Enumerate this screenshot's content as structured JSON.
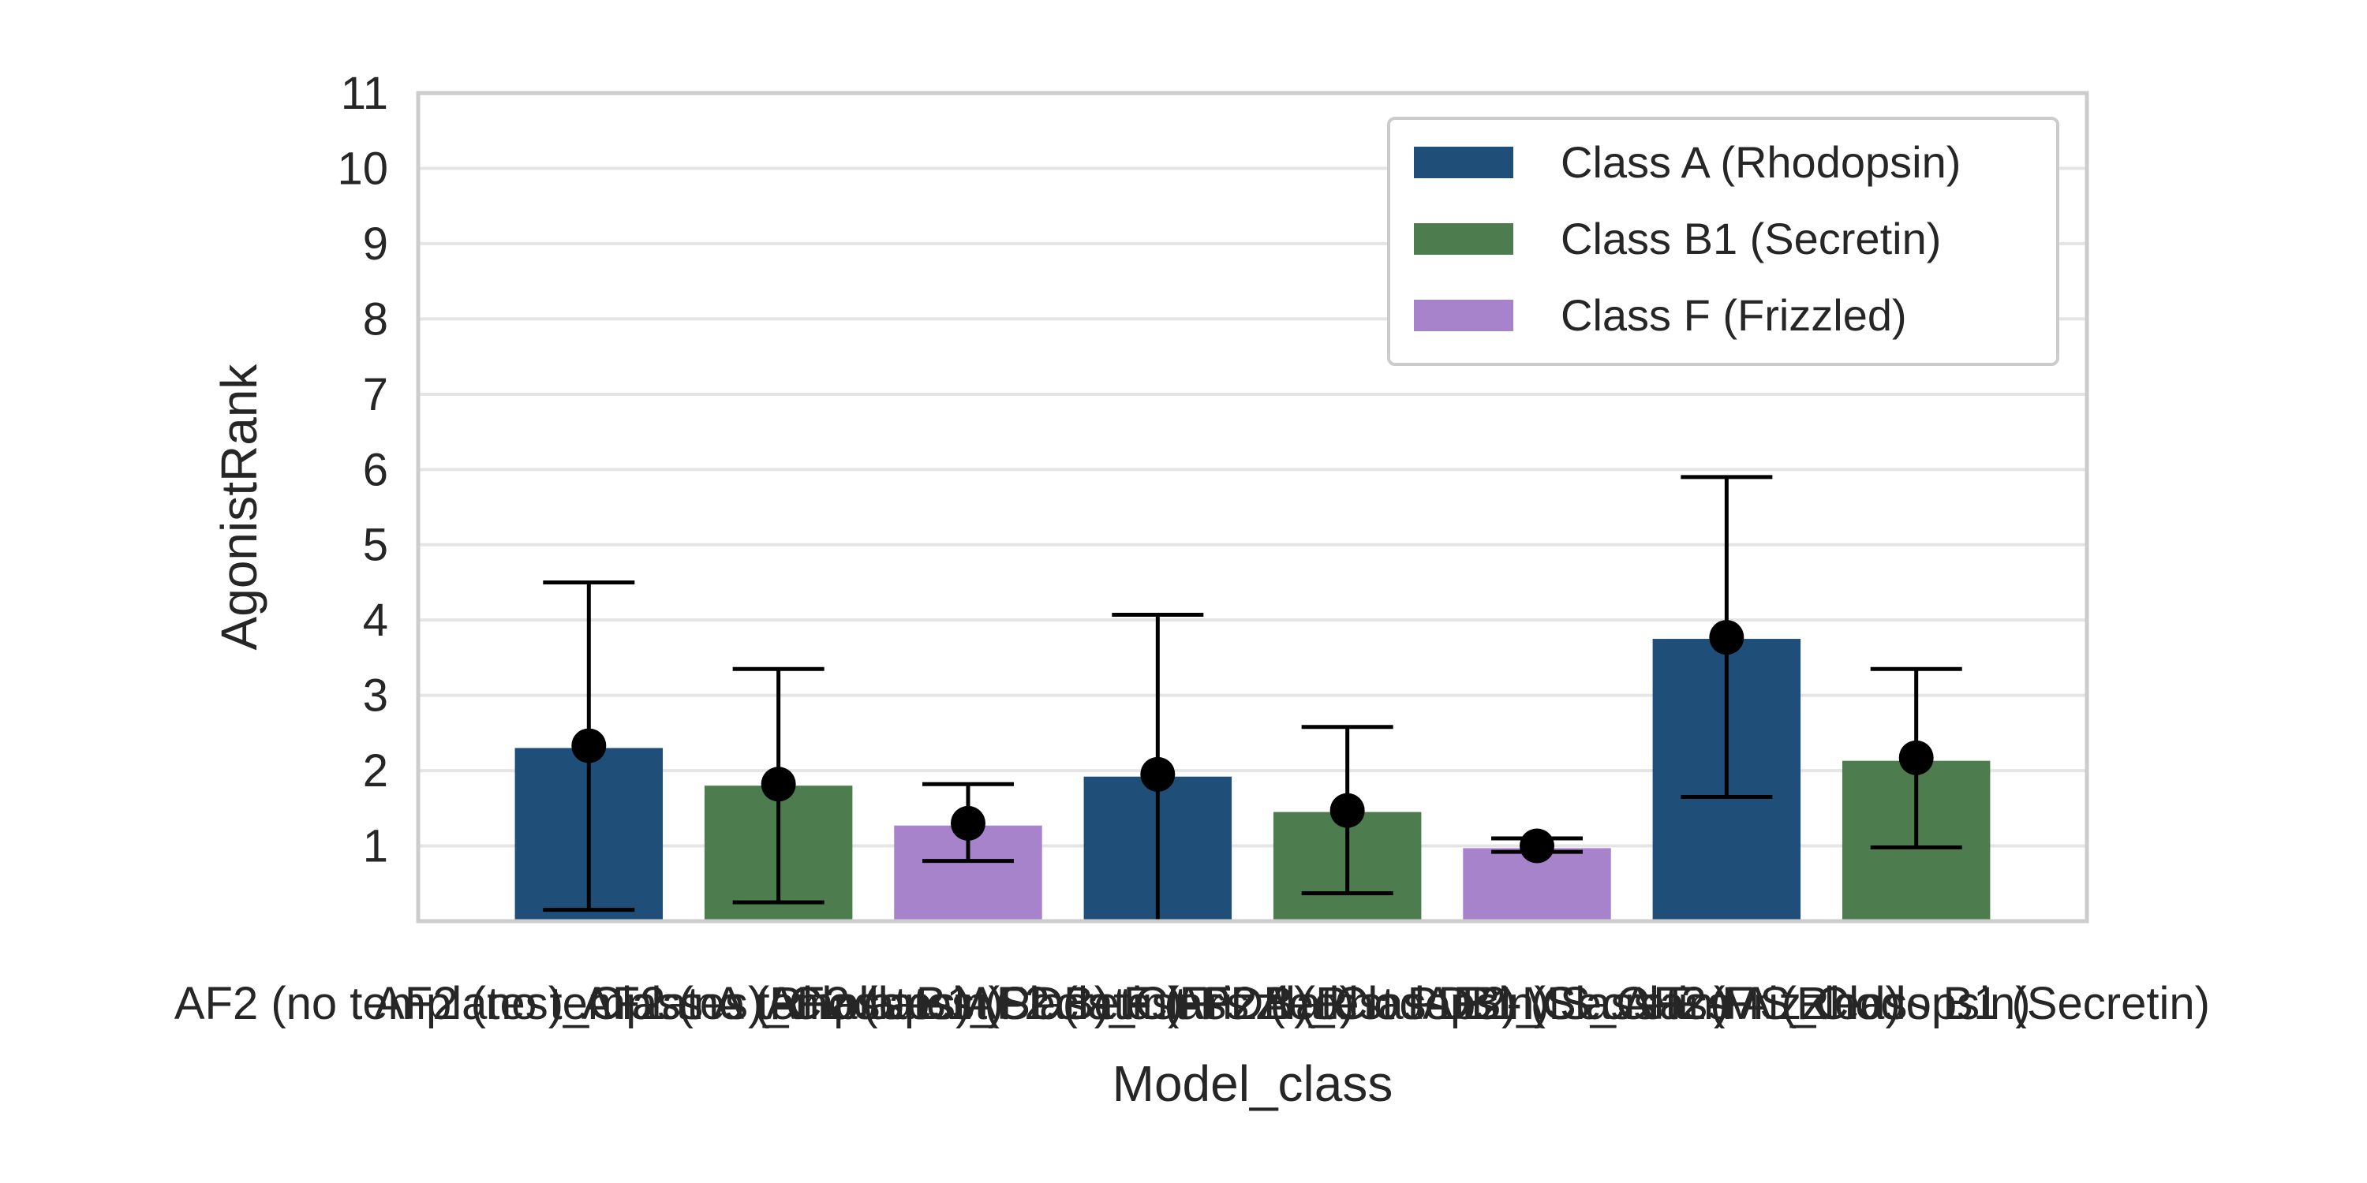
{
  "chart_data": {
    "type": "bar",
    "xlabel": "Model_class",
    "ylabel": "AgonistRank",
    "ylim": [
      0,
      11
    ],
    "yticks": [
      1,
      2,
      3,
      4,
      5,
      6,
      7,
      8,
      9,
      10,
      11
    ],
    "grid": true,
    "legend_position": "top-right",
    "categories": [
      "AF2 (no templates)_Class A (Rhodopsin)",
      "AF2 (no templates)_Class B1 (Secretin)",
      "AF2 (no templates)_Class F (Frizzled)",
      "AF2 (latest PDB)_Class A (Rhodopsin)",
      "AF2 (latest PDB)_Class B1 (Secretin)",
      "AF2 (latest PDB)_Class F (Frizzled)",
      "AF2-MS_Class A (Rhodopsin)",
      "AF2-MS_Class B1 (Secretin)"
    ],
    "bars": [
      {
        "class": "Class A (Rhodopsin)",
        "value": 2.3,
        "mean": 2.33,
        "err_low": 0.15,
        "err_high": 4.5
      },
      {
        "class": "Class B1 (Secretin)",
        "value": 1.8,
        "mean": 1.82,
        "err_low": 0.25,
        "err_high": 3.35
      },
      {
        "class": "Class F (Frizzled)",
        "value": 1.27,
        "mean": 1.3,
        "err_low": 0.8,
        "err_high": 1.82
      },
      {
        "class": "Class A (Rhodopsin)",
        "value": 1.92,
        "mean": 1.95,
        "err_low": 0.0,
        "err_high": 4.07
      },
      {
        "class": "Class B1 (Secretin)",
        "value": 1.45,
        "mean": 1.47,
        "err_low": 0.37,
        "err_high": 2.58
      },
      {
        "class": "Class F (Frizzled)",
        "value": 0.97,
        "mean": 1.0,
        "err_low": 0.92,
        "err_high": 1.1
      },
      {
        "class": "Class A (Rhodopsin)",
        "value": 3.75,
        "mean": 3.77,
        "err_low": 1.65,
        "err_high": 5.9
      },
      {
        "class": "Class B1 (Secretin)",
        "value": 2.13,
        "mean": 2.17,
        "err_low": 0.98,
        "err_high": 3.35
      }
    ],
    "series": [
      {
        "name": "Class A (Rhodopsin)",
        "color": "#1f4e79"
      },
      {
        "name": "Class B1 (Secretin)",
        "color": "#4d7c4f"
      },
      {
        "name": "Class F (Frizzled)",
        "color": "#a683cb"
      }
    ]
  }
}
